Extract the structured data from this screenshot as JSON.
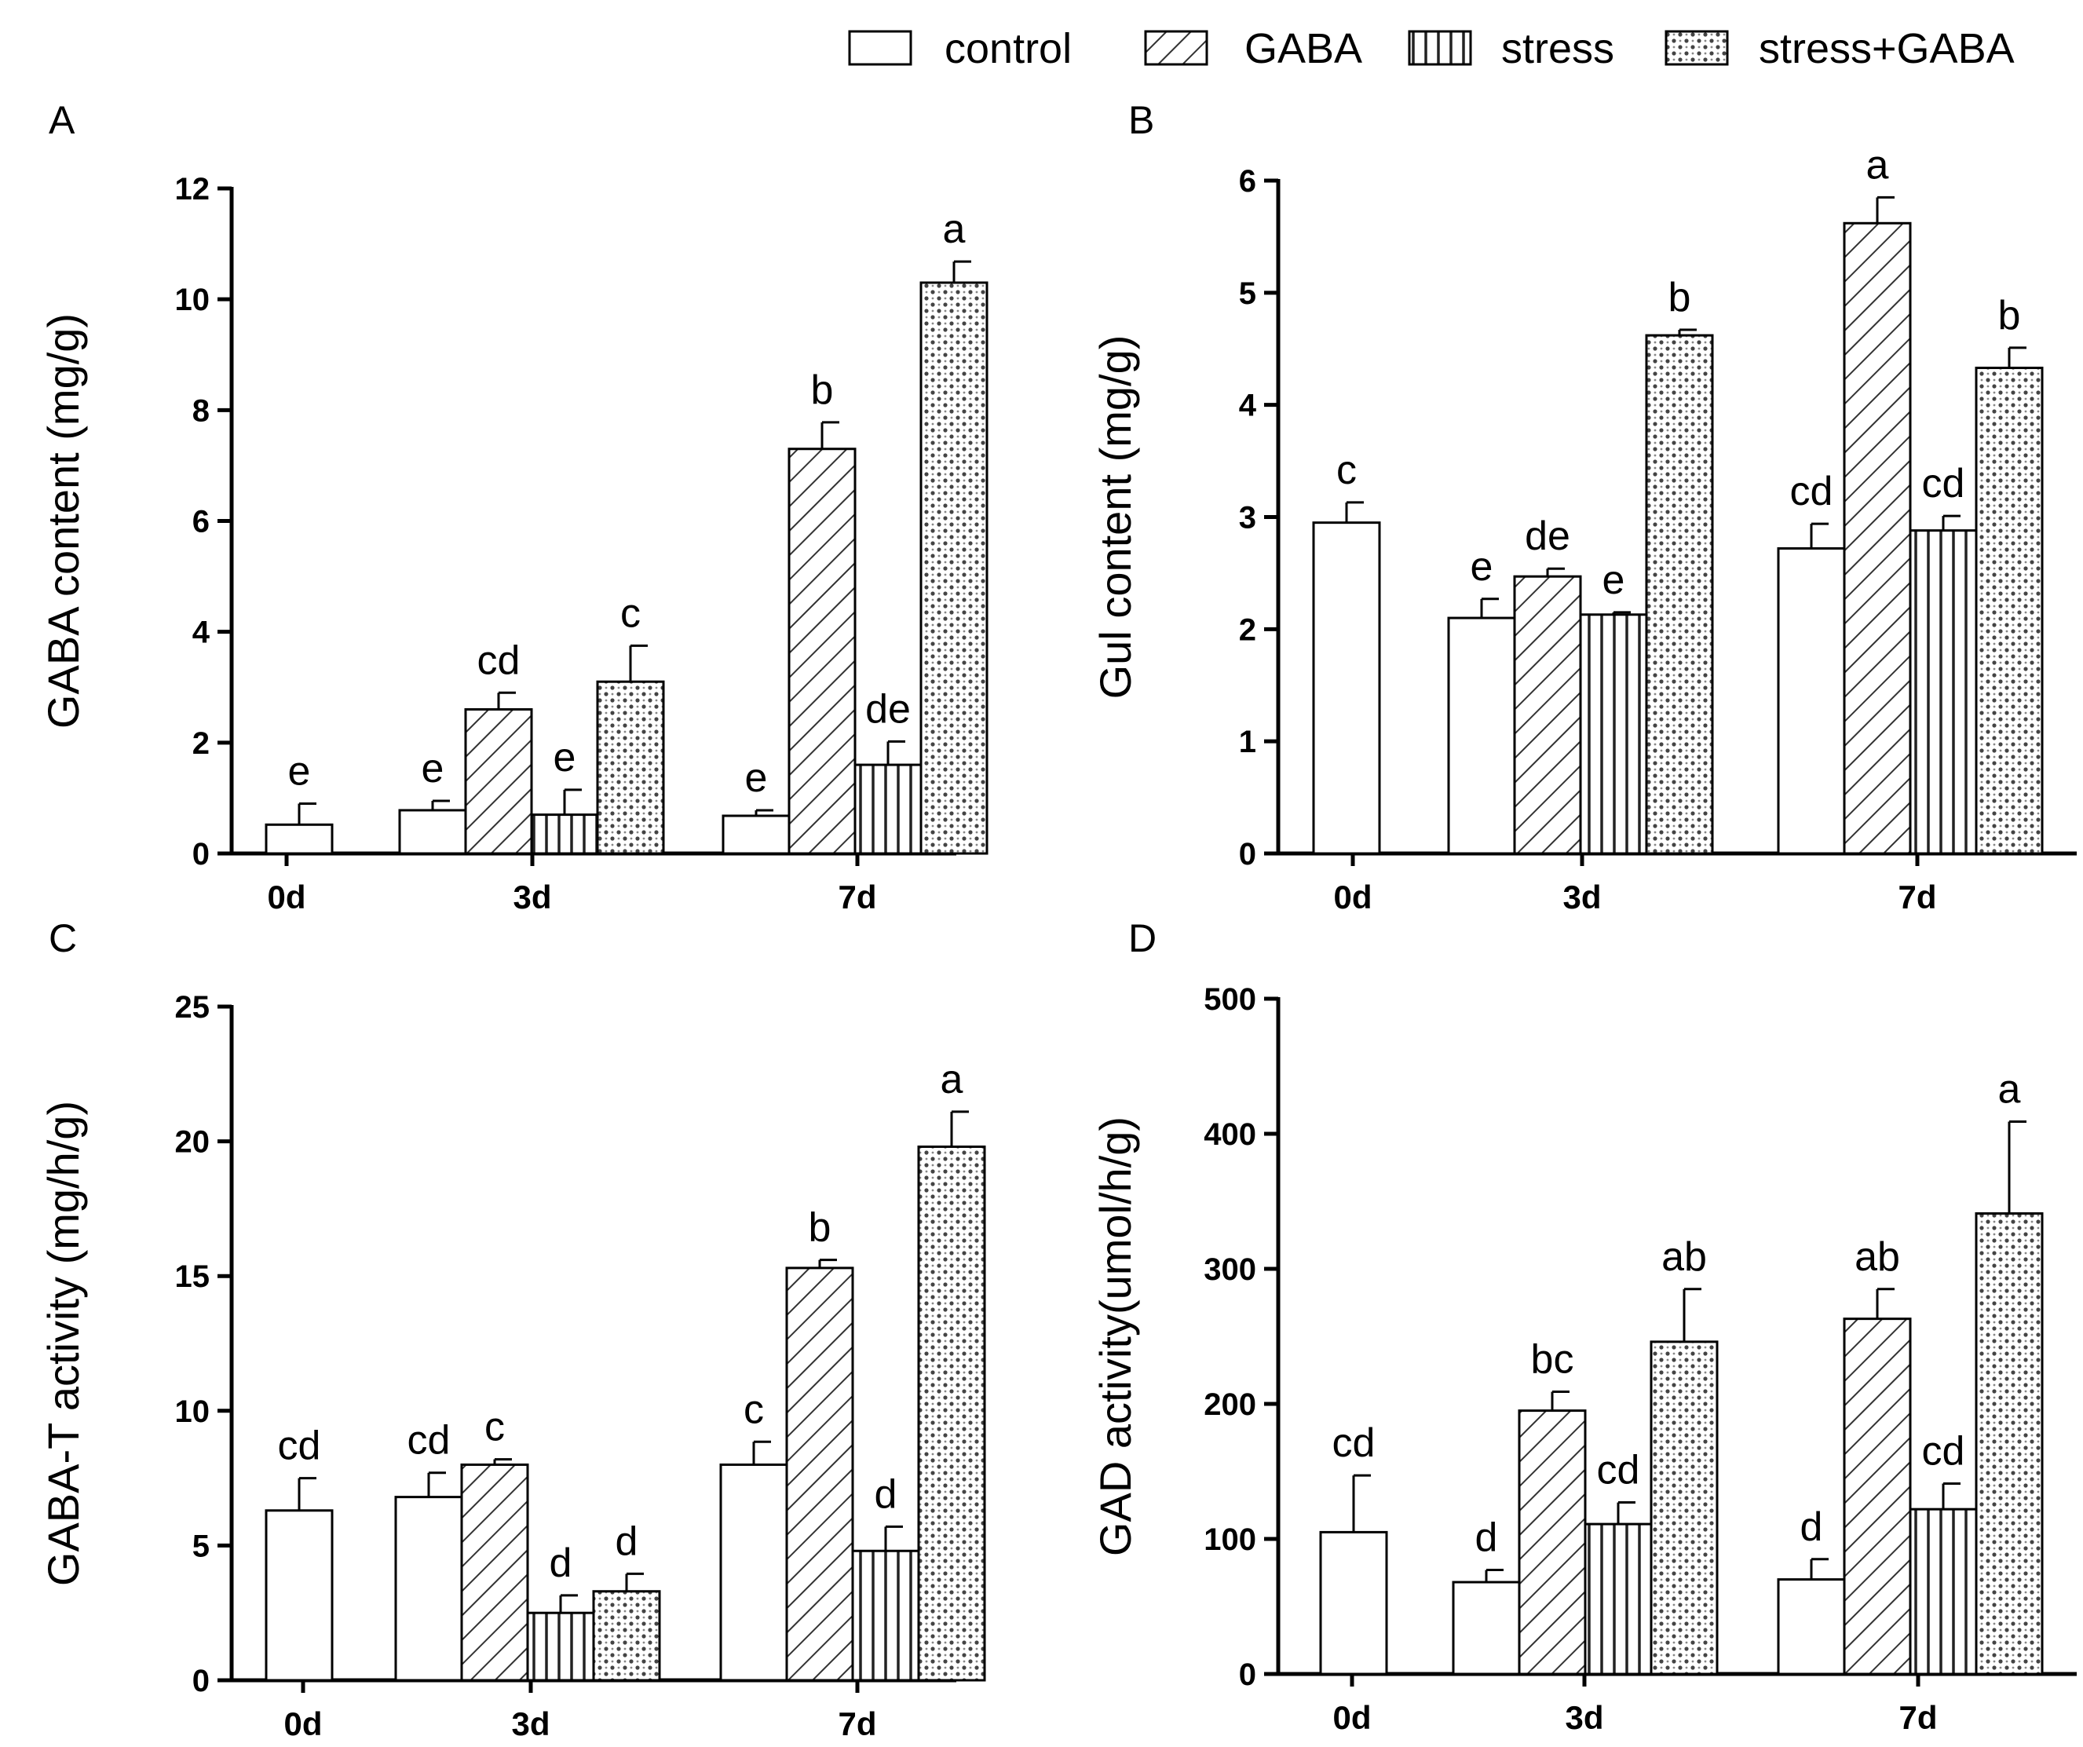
{
  "legend": [
    {
      "name": "control",
      "pattern": "none"
    },
    {
      "name": "GABA",
      "pattern": "diagonal"
    },
    {
      "name": "stress",
      "pattern": "vertical"
    },
    {
      "name": "stress+GABA",
      "pattern": "dots"
    }
  ],
  "colors": {
    "bar_fill": "#ffffff",
    "ink": "#000000",
    "hatch": "#333333"
  },
  "chart_data": [
    {
      "panel": "A",
      "type": "bar",
      "ylabel": "GABA content (mg/g)",
      "ylim": [
        0,
        12
      ],
      "yticks": [
        "0",
        "2",
        "4",
        "6",
        "8",
        "10",
        "12"
      ],
      "categories": [
        "0d",
        "3d",
        "7d"
      ],
      "series": [
        {
          "name": "control",
          "values": [
            0.52,
            0.78,
            0.68
          ],
          "errors": [
            0.38,
            0.17,
            0.1
          ],
          "letters": [
            "e",
            "e",
            "e"
          ]
        },
        {
          "name": "GABA",
          "values": [
            null,
            2.6,
            7.3
          ],
          "errors": [
            null,
            0.3,
            0.48
          ],
          "letters": [
            null,
            "cd",
            "b"
          ]
        },
        {
          "name": "stress",
          "values": [
            null,
            0.7,
            1.6
          ],
          "errors": [
            null,
            0.45,
            0.42
          ],
          "letters": [
            null,
            "e",
            "de"
          ]
        },
        {
          "name": "stress+GABA",
          "values": [
            null,
            3.1,
            10.3
          ],
          "errors": [
            null,
            0.65,
            0.38
          ],
          "letters": [
            null,
            "c",
            "a"
          ]
        }
      ]
    },
    {
      "panel": "B",
      "type": "bar",
      "ylabel": "Gul content (mg/g)",
      "ylim": [
        0,
        6
      ],
      "yticks": [
        "0",
        "1",
        "2",
        "3",
        "4",
        "5",
        "6"
      ],
      "categories": [
        "0d",
        "3d",
        "7d"
      ],
      "series": [
        {
          "name": "control",
          "values": [
            2.95,
            2.1,
            2.72
          ],
          "errors": [
            0.18,
            0.17,
            0.22
          ],
          "letters": [
            "c",
            "e",
            "cd"
          ]
        },
        {
          "name": "GABA",
          "values": [
            null,
            2.47,
            5.62
          ],
          "errors": [
            null,
            0.07,
            0.23
          ],
          "letters": [
            null,
            "de",
            "a"
          ]
        },
        {
          "name": "stress",
          "values": [
            null,
            2.13,
            2.88
          ],
          "errors": [
            null,
            0.02,
            0.13
          ],
          "letters": [
            null,
            "e",
            "cd"
          ]
        },
        {
          "name": "stress+GABA",
          "values": [
            null,
            4.62,
            4.33
          ],
          "errors": [
            null,
            0.05,
            0.18
          ],
          "letters": [
            null,
            "b",
            "b"
          ]
        }
      ]
    },
    {
      "panel": "C",
      "type": "bar",
      "ylabel": "GABA-T activity (mg/h/g)",
      "ylim": [
        0,
        25
      ],
      "yticks": [
        "0",
        "5",
        "10",
        "15",
        "20",
        "25"
      ],
      "categories": [
        "0d",
        "3d",
        "7d"
      ],
      "series": [
        {
          "name": "control",
          "values": [
            6.3,
            6.8,
            8.0
          ],
          "errors": [
            1.2,
            0.9,
            0.85
          ],
          "letters": [
            "cd",
            "cd",
            "c"
          ]
        },
        {
          "name": "GABA",
          "values": [
            null,
            8.0,
            15.3
          ],
          "errors": [
            null,
            0.2,
            0.3
          ],
          "letters": [
            null,
            "c",
            "b"
          ]
        },
        {
          "name": "stress",
          "values": [
            null,
            2.5,
            4.8
          ],
          "errors": [
            null,
            0.65,
            0.9
          ],
          "letters": [
            null,
            "d",
            "d"
          ]
        },
        {
          "name": "stress+GABA",
          "values": [
            null,
            3.3,
            19.8
          ],
          "errors": [
            null,
            0.65,
            1.3
          ],
          "letters": [
            null,
            "d",
            "a"
          ]
        }
      ]
    },
    {
      "panel": "D",
      "type": "bar",
      "ylabel": "GAD activity(umol/h/g)",
      "ylim": [
        0,
        500
      ],
      "yticks": [
        "0",
        "100",
        "200",
        "300",
        "400",
        "500"
      ],
      "categories": [
        "0d",
        "3d",
        "7d"
      ],
      "series": [
        {
          "name": "control",
          "values": [
            105,
            68,
            70
          ],
          "errors": [
            42,
            9,
            15
          ],
          "letters": [
            "cd",
            "d",
            "d"
          ]
        },
        {
          "name": "GABA",
          "values": [
            null,
            195,
            263
          ],
          "errors": [
            null,
            14,
            22
          ],
          "letters": [
            null,
            "bc",
            "ab"
          ]
        },
        {
          "name": "stress",
          "values": [
            null,
            111,
            122
          ],
          "errors": [
            null,
            16,
            19
          ],
          "letters": [
            null,
            "cd",
            "cd"
          ]
        },
        {
          "name": "stress+GABA",
          "values": [
            null,
            246,
            341
          ],
          "errors": [
            null,
            39,
            68
          ],
          "letters": [
            null,
            "ab",
            "a"
          ]
        }
      ]
    }
  ]
}
